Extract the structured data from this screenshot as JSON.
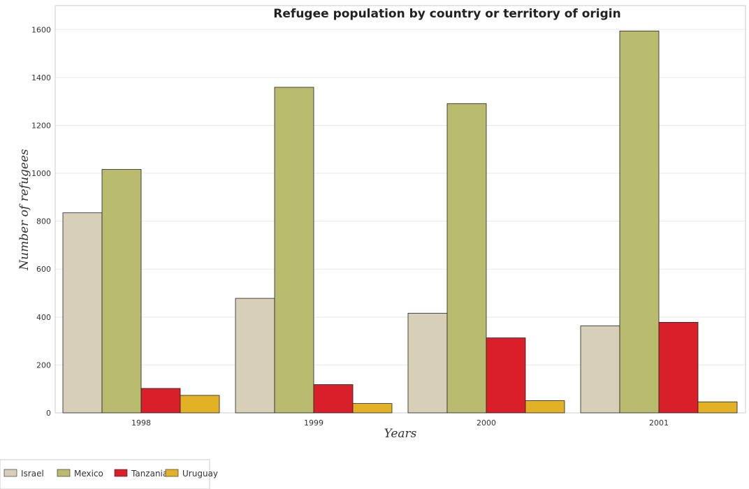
{
  "chart_data": {
    "type": "bar",
    "title": "Refugee population by country or territory of origin",
    "xlabel": "Years",
    "ylabel": "Number of refugees",
    "categories": [
      "1998",
      "1999",
      "2000",
      "2001"
    ],
    "series": [
      {
        "name": "Israel",
        "color": "#d8cfb9",
        "values": [
          835,
          478,
          416,
          363
        ]
      },
      {
        "name": "Mexico",
        "color": "#b9bc6f",
        "values": [
          1016,
          1359,
          1291,
          1594
        ]
      },
      {
        "name": "Tanzania",
        "color": "#d81f2a",
        "values": [
          102,
          118,
          313,
          378
        ]
      },
      {
        "name": "Uruguay",
        "color": "#e3b126",
        "values": [
          73,
          39,
          51,
          46
        ]
      }
    ],
    "yticks": [
      0,
      200,
      400,
      600,
      800,
      1000,
      1200,
      1400,
      1600
    ],
    "ylim": [
      0,
      1700
    ],
    "grid": true,
    "legend_position": "bottom-left"
  }
}
